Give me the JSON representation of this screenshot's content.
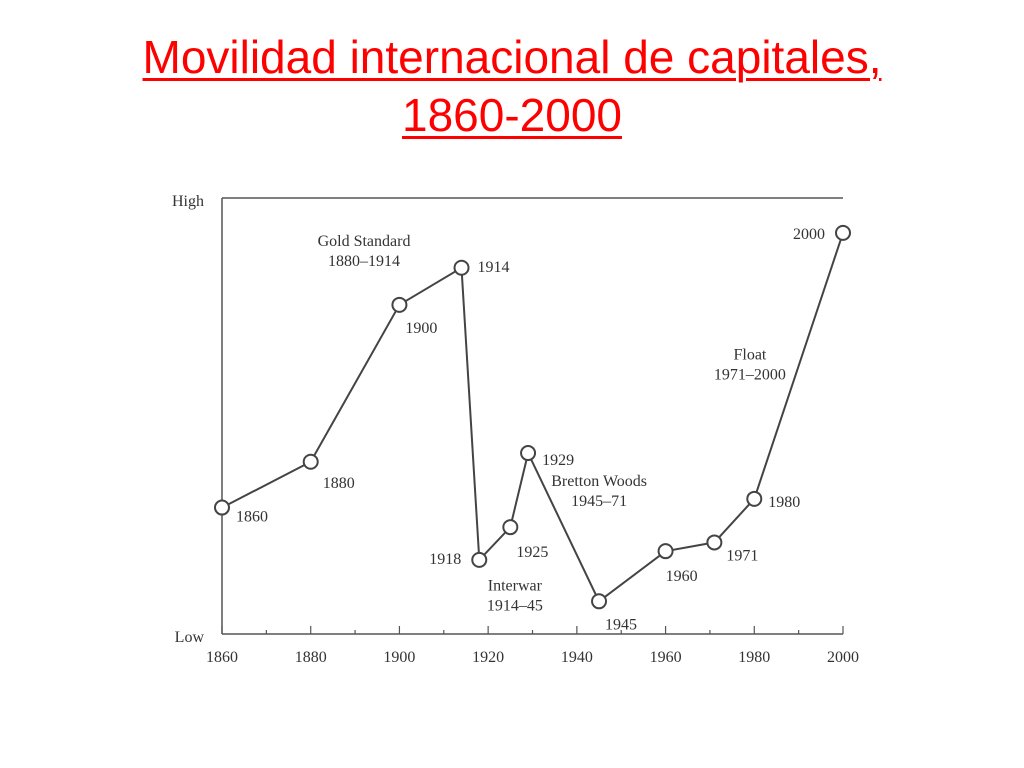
{
  "title": {
    "line1": "Movilidad internacional de capitales,",
    "line2": "1860-2000"
  },
  "colors": {
    "title": "#ff0000",
    "series": "#444444",
    "axis": "#555555"
  },
  "chart_data": {
    "type": "line",
    "title": "",
    "xlabel": "",
    "ylabel": "",
    "xlim": [
      1860,
      2000
    ],
    "ylim": [
      0,
      100
    ],
    "x_ticks": [
      1860,
      1880,
      1900,
      1920,
      1940,
      1960,
      1980,
      2000
    ],
    "x_minor_ticks": [
      1870,
      1890,
      1910,
      1930,
      1950,
      1970,
      1990
    ],
    "y_ticks": [
      {
        "value": 100,
        "label": "High"
      },
      {
        "value": 0,
        "label": "Low"
      }
    ],
    "grid": false,
    "series": [
      {
        "points": [
          {
            "x": 1860,
            "y": 29,
            "label": "1860"
          },
          {
            "x": 1880,
            "y": 39.5,
            "label": "1880"
          },
          {
            "x": 1900,
            "y": 75.5,
            "label": "1900"
          },
          {
            "x": 1914,
            "y": 84,
            "label": "1914"
          },
          {
            "x": 1918,
            "y": 17,
            "label": "1918"
          },
          {
            "x": 1925,
            "y": 24.5,
            "label": "1925"
          },
          {
            "x": 1929,
            "y": 41.5,
            "label": "1929"
          },
          {
            "x": 1945,
            "y": 7.5,
            "label": "1945"
          },
          {
            "x": 1960,
            "y": 19,
            "label": "1960"
          },
          {
            "x": 1971,
            "y": 21,
            "label": "1971"
          },
          {
            "x": 1980,
            "y": 31,
            "label": "1980"
          },
          {
            "x": 2000,
            "y": 92,
            "label": "2000"
          }
        ]
      }
    ],
    "annotations": [
      {
        "lines": [
          "Gold Standard",
          "1880–1914"
        ],
        "x": 1883,
        "y": 89
      },
      {
        "lines": [
          "Interwar",
          "1914–45"
        ],
        "x": 1917,
        "y": 10
      },
      {
        "lines": [
          "Bretton Woods",
          "1945–71"
        ],
        "x": 1936,
        "y": 34
      },
      {
        "lines": [
          "Float",
          "1971–2000"
        ],
        "x": 1970,
        "y": 63
      }
    ]
  }
}
